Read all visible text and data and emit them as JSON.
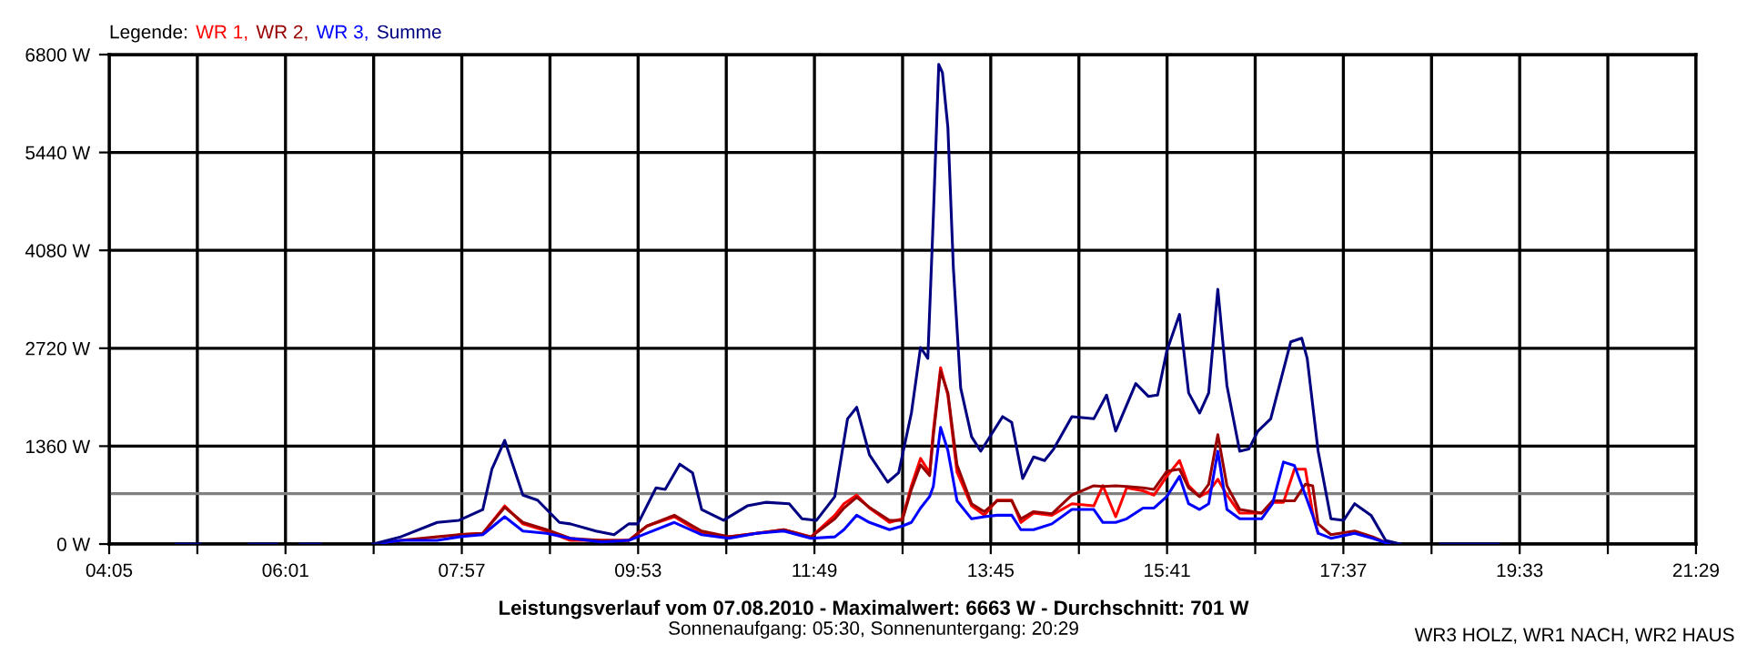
{
  "chart_data": {
    "type": "line",
    "title": "Leistungsverlauf vom 07.08.2010 - Maximalwert: 6663 W - Durchschnitt: 701 W",
    "subtitle": "Sonnenaufgang: 05:30, Sonnenuntergang: 20:29",
    "legend_title": "Legende:",
    "annotations": [
      "WR3 HOLZ, WR1 NACH, WR2 HAUS"
    ],
    "x": [
      6.98,
      7.28,
      7.68,
      7.92,
      8.18,
      8.42,
      8.62,
      8.88,
      9.14,
      9.48,
      9.78,
      9.98,
      10.28,
      10.58,
      10.88,
      11.18,
      11.48,
      11.78,
      12.04,
      12.14,
      12.28,
      12.42,
      12.64,
      12.78,
      12.88,
      12.98,
      13.08,
      13.12,
      13.2,
      13.28,
      13.38,
      13.54,
      13.68,
      13.82,
      13.98,
      14.08,
      14.22,
      14.42,
      14.64,
      14.88,
      14.98,
      15.12,
      15.24,
      15.42,
      15.54,
      15.68,
      15.82,
      15.92,
      16.04,
      16.14,
      16.24,
      16.34,
      16.48,
      16.72,
      16.84,
      16.96,
      17.08,
      17.2,
      17.28,
      17.34,
      17.48,
      17.74,
      17.94,
      18.12
    ],
    "series": [
      {
        "name": "WR 1,",
        "color": "#ff0000",
        "values": [
          null,
          null,
          null,
          130,
          150,
          530,
          280,
          180,
          50,
          50,
          50,
          250,
          380,
          150,
          100,
          150,
          200,
          100,
          400,
          560,
          680,
          500,
          300,
          350,
          810,
          1190,
          990,
          1570,
          2450,
          2070,
          1000,
          530,
          400,
          610,
          610,
          300,
          430,
          400,
          560,
          530,
          810,
          380,
          780,
          740,
          680,
          940,
          1160,
          810,
          660,
          730,
          900,
          680,
          430,
          430,
          580,
          580,
          1040,
          1040,
          430,
          150,
          null,
          null,
          null,
          null
        ]
      },
      {
        "name": "WR 2,",
        "color": "#990000",
        "values": [
          0,
          50,
          100,
          130,
          150,
          510,
          300,
          200,
          80,
          50,
          50,
          250,
          400,
          180,
          100,
          150,
          200,
          100,
          350,
          500,
          650,
          510,
          330,
          330,
          760,
          1100,
          950,
          1500,
          2400,
          2100,
          1100,
          560,
          450,
          600,
          600,
          350,
          450,
          420,
          680,
          810,
          800,
          810,
          800,
          780,
          760,
          1010,
          1040,
          780,
          660,
          830,
          1520,
          810,
          480,
          430,
          600,
          600,
          600,
          830,
          810,
          280,
          130,
          180,
          100,
          0
        ]
      },
      {
        "name": "WR 3,",
        "color": "#0000ff",
        "values": [
          0,
          50,
          50,
          100,
          130,
          380,
          180,
          150,
          80,
          30,
          50,
          150,
          300,
          130,
          80,
          150,
          180,
          80,
          100,
          200,
          400,
          300,
          200,
          250,
          300,
          500,
          660,
          800,
          1620,
          1300,
          600,
          350,
          380,
          400,
          400,
          200,
          200,
          280,
          480,
          480,
          300,
          300,
          350,
          500,
          500,
          660,
          940,
          560,
          480,
          560,
          1290,
          480,
          350,
          350,
          560,
          1140,
          1090,
          680,
          400,
          150,
          80,
          150,
          80,
          0
        ]
      },
      {
        "name": "Summe",
        "color": "#000080",
        "x": [
          4.82,
          5.08,
          5.3,
          5.62,
          5.92,
          6.05,
          6.18,
          6.4,
          6.6,
          6.98,
          7.28,
          7.68,
          7.92,
          8.18,
          8.28,
          8.42,
          8.62,
          8.78,
          9.02,
          9.14,
          9.42,
          9.62,
          9.78,
          9.88,
          10.08,
          10.18,
          10.34,
          10.48,
          10.58,
          10.82,
          11.08,
          11.28,
          11.54,
          11.68,
          11.84,
          12.04,
          12.18,
          12.28,
          12.42,
          12.62,
          12.74,
          12.88,
          12.98,
          13.06,
          13.12,
          13.18,
          13.22,
          13.28,
          13.34,
          13.42,
          13.54,
          13.64,
          13.88,
          13.98,
          14.1,
          14.22,
          14.34,
          14.44,
          14.64,
          14.88,
          15.02,
          15.12,
          15.34,
          15.48,
          15.58,
          15.68,
          15.82,
          15.92,
          16.04,
          16.14,
          16.24,
          16.34,
          16.48,
          16.58,
          16.68,
          16.82,
          17.04,
          17.16,
          17.22,
          17.34,
          17.48,
          17.62,
          17.74,
          17.92,
          18.08,
          18.24,
          18.45,
          18.68,
          19.32
        ],
        "values": [
          0,
          0,
          null,
          0,
          0,
          null,
          0,
          0,
          null,
          0,
          100,
          300,
          330,
          480,
          1040,
          1440,
          680,
          610,
          300,
          280,
          180,
          130,
          280,
          280,
          780,
          760,
          1110,
          990,
          480,
          330,
          530,
          580,
          560,
          350,
          330,
          660,
          1740,
          1900,
          1240,
          860,
          990,
          1820,
          2730,
          2580,
          4530,
          6663,
          6550,
          5790,
          3840,
          2170,
          1490,
          1290,
          1770,
          1690,
          910,
          1210,
          1160,
          1320,
          1770,
          1740,
          2070,
          1570,
          2230,
          2050,
          2070,
          2680,
          3190,
          2100,
          1820,
          2100,
          3540,
          2200,
          1290,
          1320,
          1570,
          1740,
          2810,
          2860,
          2580,
          1290,
          350,
          330,
          560,
          400,
          50,
          0,
          null,
          0,
          0
        ]
      }
    ],
    "xlim": [
      4.0833,
      21.4833
    ],
    "xticks": [
      {
        "value": 4.0833,
        "label": "04:05"
      },
      {
        "value": 5.05,
        "label": null
      },
      {
        "value": 6.0167,
        "label": "06:01"
      },
      {
        "value": 6.9833,
        "label": null
      },
      {
        "value": 7.95,
        "label": "07:57"
      },
      {
        "value": 8.9167,
        "label": null
      },
      {
        "value": 9.8833,
        "label": "09:53"
      },
      {
        "value": 10.85,
        "label": null
      },
      {
        "value": 11.8167,
        "label": "11:49"
      },
      {
        "value": 12.7833,
        "label": null
      },
      {
        "value": 13.75,
        "label": "13:45"
      },
      {
        "value": 14.7167,
        "label": null
      },
      {
        "value": 15.6833,
        "label": "15:41"
      },
      {
        "value": 16.65,
        "label": null
      },
      {
        "value": 17.6167,
        "label": "17:37"
      },
      {
        "value": 18.5833,
        "label": null
      },
      {
        "value": 19.55,
        "label": "19:33"
      },
      {
        "value": 20.5167,
        "label": null
      },
      {
        "value": 21.4833,
        "label": "21:29"
      }
    ],
    "ylim": [
      0,
      6800
    ],
    "yticks": [
      {
        "value": 0,
        "label": "0 W"
      },
      {
        "value": 1360,
        "label": "1360 W"
      },
      {
        "value": 2720,
        "label": "2720 W"
      },
      {
        "value": 4080,
        "label": "4080 W"
      },
      {
        "value": 5440,
        "label": "5440 W"
      },
      {
        "value": 6800,
        "label": "6800 W"
      }
    ],
    "ref_lines": [
      {
        "axis": "y",
        "value": 701,
        "color": "#808080"
      }
    ],
    "grid": true,
    "legend": "top left",
    "marker": "none",
    "line_style": "solid"
  }
}
